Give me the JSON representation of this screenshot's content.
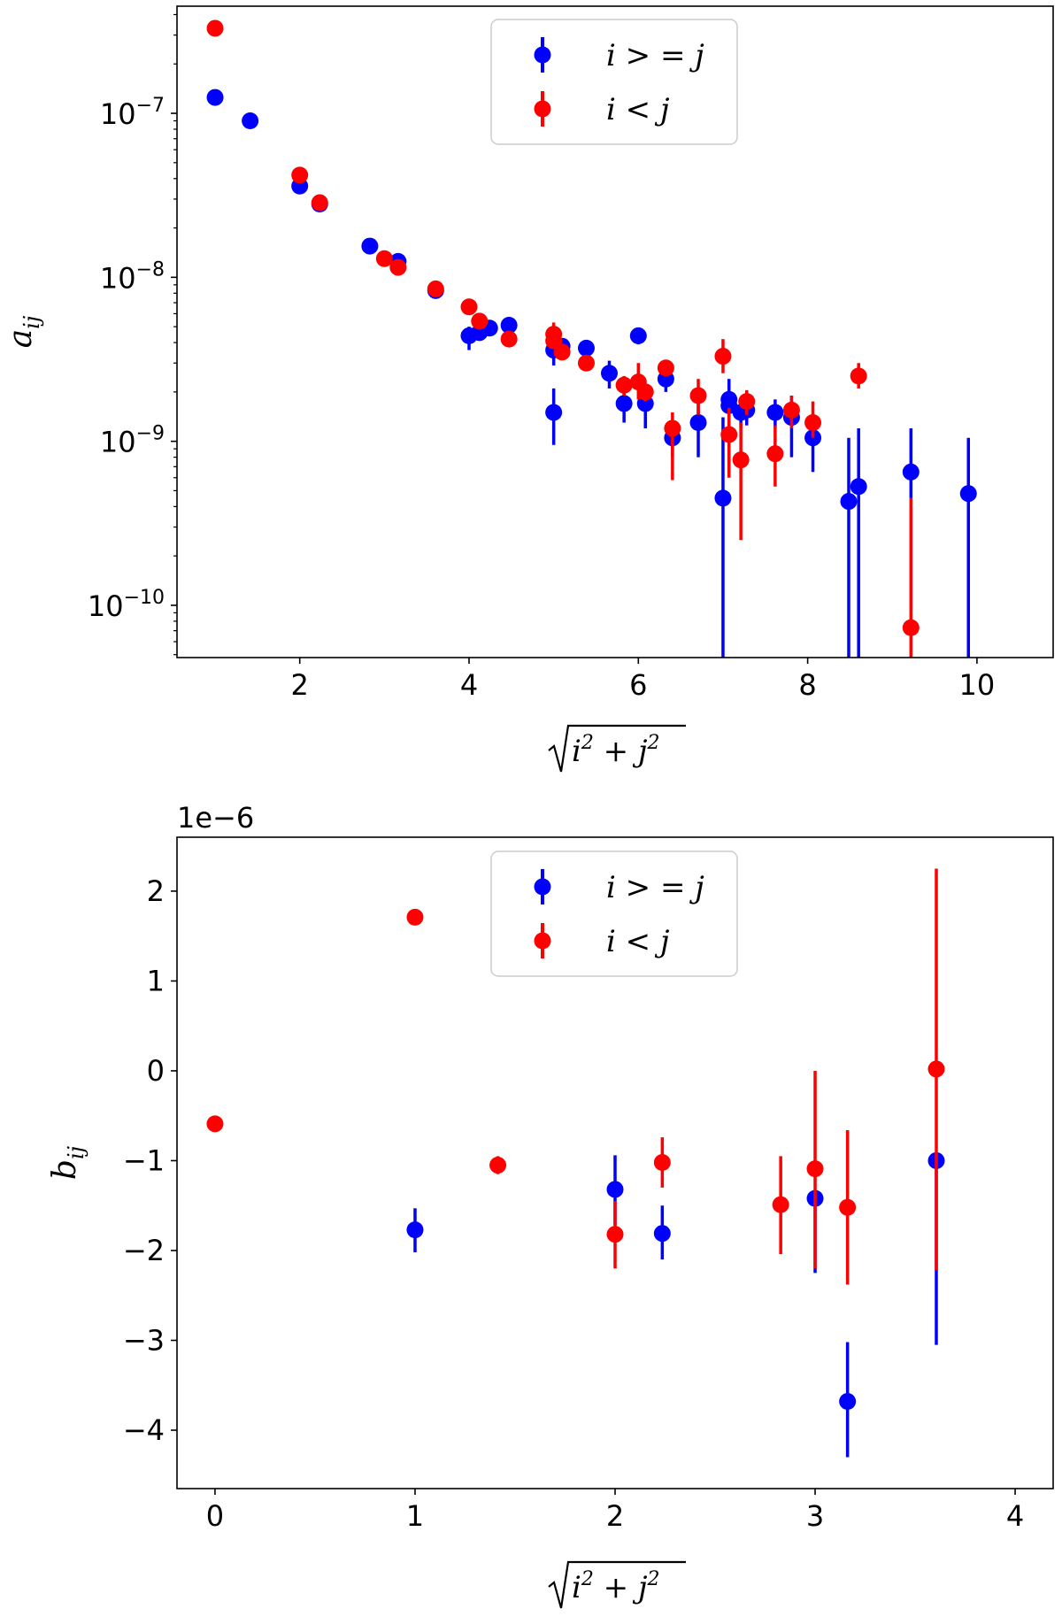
{
  "colors": {
    "blue": "#0000ff",
    "red": "#ff0000"
  },
  "legend": {
    "entries": [
      "i > = j",
      "i < j"
    ]
  },
  "chart_data": [
    {
      "type": "scatter",
      "yscale": "log",
      "xlabel": "sqrt(i^2 + j^2)",
      "ylabel": "a_ij",
      "xlim": [
        0.55,
        10.9
      ],
      "ylim": [
        4.8e-11,
        4.5e-07
      ],
      "xticks": [
        2,
        4,
        6,
        8,
        10
      ],
      "yticks": [
        {
          "value": 1e-07,
          "exp": "-7"
        },
        {
          "value": 1e-08,
          "exp": "-8"
        },
        {
          "value": 1e-09,
          "exp": "-9"
        },
        {
          "value": 1e-10,
          "exp": "-10"
        }
      ],
      "legend_position": "top-center",
      "series": [
        {
          "name": "i > = j",
          "color": "#0000ff",
          "points": [
            {
              "x": 1.0,
              "y": 1.25e-07,
              "lo": 1.2e-07,
              "hi": 1.3e-07
            },
            {
              "x": 1.414,
              "y": 9e-08,
              "lo": 8.7e-08,
              "hi": 9.3e-08
            },
            {
              "x": 2.0,
              "y": 3.6e-08,
              "lo": 3.4e-08,
              "hi": 3.8e-08
            },
            {
              "x": 2.236,
              "y": 2.8e-08,
              "lo": 2.7e-08,
              "hi": 2.9e-08
            },
            {
              "x": 2.828,
              "y": 1.55e-08,
              "lo": 1.5e-08,
              "hi": 1.6e-08
            },
            {
              "x": 3.162,
              "y": 1.25e-08,
              "lo": 1.2e-08,
              "hi": 1.3e-08
            },
            {
              "x": 3.606,
              "y": 8.3e-09,
              "lo": 8e-09,
              "hi": 8.6e-09
            },
            {
              "x": 4.0,
              "y": 4.4e-09,
              "lo": 3.6e-09,
              "hi": 5e-09
            },
            {
              "x": 4.123,
              "y": 4.6e-09,
              "lo": 4.2e-09,
              "hi": 5e-09
            },
            {
              "x": 4.243,
              "y": 4.9e-09,
              "lo": 4.5e-09,
              "hi": 5.3e-09
            },
            {
              "x": 4.472,
              "y": 5.1e-09,
              "lo": 4.8e-09,
              "hi": 5.4e-09
            },
            {
              "x": 5.0,
              "y": 3.6e-09,
              "lo": 2.9e-09,
              "hi": 4.3e-09
            },
            {
              "x": 5.0,
              "y": 1.5e-09,
              "lo": 9.5e-10,
              "hi": 2.1e-09
            },
            {
              "x": 5.099,
              "y": 3.8e-09,
              "lo": 3.5e-09,
              "hi": 4.1e-09
            },
            {
              "x": 5.385,
              "y": 3.7e-09,
              "lo": 3.4e-09,
              "hi": 4e-09
            },
            {
              "x": 5.657,
              "y": 2.6e-09,
              "lo": 2.1e-09,
              "hi": 3.1e-09
            },
            {
              "x": 5.831,
              "y": 1.7e-09,
              "lo": 1.3e-09,
              "hi": 2.1e-09
            },
            {
              "x": 6.0,
              "y": 4.4e-09,
              "lo": 3.9e-09,
              "hi": 4.9e-09
            },
            {
              "x": 6.083,
              "y": 1.7e-09,
              "lo": 1.2e-09,
              "hi": 2.2e-09
            },
            {
              "x": 6.325,
              "y": 2.4e-09,
              "lo": 2e-09,
              "hi": 2.8e-09
            },
            {
              "x": 6.403,
              "y": 1.05e-09,
              "lo": 8e-10,
              "hi": 1.3e-09
            },
            {
              "x": 6.708,
              "y": 1.3e-09,
              "lo": 8e-10,
              "hi": 1.8e-09
            },
            {
              "x": 7.0,
              "y": 4.5e-10,
              "lo": 1e-12,
              "hi": 1.4e-09
            },
            {
              "x": 7.071,
              "y": 1.8e-09,
              "lo": 1.3e-09,
              "hi": 2.4e-09
            },
            {
              "x": 7.071,
              "y": 1.65e-09,
              "lo": 1.3e-09,
              "hi": 2e-09
            },
            {
              "x": 7.211,
              "y": 1.5e-09,
              "lo": 1.2e-09,
              "hi": 1.8e-09
            },
            {
              "x": 7.28,
              "y": 1.55e-09,
              "lo": 1.25e-09,
              "hi": 1.85e-09
            },
            {
              "x": 7.616,
              "y": 1.5e-09,
              "lo": 1.2e-09,
              "hi": 1.8e-09
            },
            {
              "x": 7.81,
              "y": 1.4e-09,
              "lo": 8e-10,
              "hi": 1.9e-09
            },
            {
              "x": 8.062,
              "y": 1.05e-09,
              "lo": 6.5e-10,
              "hi": 1.4e-09
            },
            {
              "x": 8.485,
              "y": 4.3e-10,
              "lo": 1e-12,
              "hi": 1.05e-09
            },
            {
              "x": 8.602,
              "y": 5.3e-10,
              "lo": 1e-12,
              "hi": 1.2e-09
            },
            {
              "x": 9.22,
              "y": 6.5e-10,
              "lo": 4.5e-10,
              "hi": 1.2e-09
            },
            {
              "x": 9.899,
              "y": 4.8e-10,
              "lo": 1e-12,
              "hi": 1.05e-09
            }
          ]
        },
        {
          "name": "i < j",
          "color": "#ff0000",
          "points": [
            {
              "x": 1.0,
              "y": 3.3e-07,
              "lo": 3.2e-07,
              "hi": 3.4e-07
            },
            {
              "x": 2.0,
              "y": 4.2e-08,
              "lo": 4e-08,
              "hi": 4.4e-08
            },
            {
              "x": 2.236,
              "y": 2.85e-08,
              "lo": 2.75e-08,
              "hi": 2.95e-08
            },
            {
              "x": 3.0,
              "y": 1.3e-08,
              "lo": 1.25e-08,
              "hi": 1.35e-08
            },
            {
              "x": 3.162,
              "y": 1.15e-08,
              "lo": 1.1e-08,
              "hi": 1.2e-08
            },
            {
              "x": 3.606,
              "y": 8.5e-09,
              "lo": 8.2e-09,
              "hi": 8.8e-09
            },
            {
              "x": 4.0,
              "y": 6.6e-09,
              "lo": 6.3e-09,
              "hi": 6.9e-09
            },
            {
              "x": 4.123,
              "y": 5.4e-09,
              "lo": 5.1e-09,
              "hi": 5.7e-09
            },
            {
              "x": 4.472,
              "y": 4.2e-09,
              "lo": 4e-09,
              "hi": 4.4e-09
            },
            {
              "x": 5.0,
              "y": 4.5e-09,
              "lo": 3.8e-09,
              "hi": 5.3e-09
            },
            {
              "x": 5.0,
              "y": 4.1e-09,
              "lo": 3.7e-09,
              "hi": 4.5e-09
            },
            {
              "x": 5.099,
              "y": 3.5e-09,
              "lo": 3.2e-09,
              "hi": 3.8e-09
            },
            {
              "x": 5.385,
              "y": 3e-09,
              "lo": 2.8e-09,
              "hi": 3.2e-09
            },
            {
              "x": 5.831,
              "y": 2.2e-09,
              "lo": 1.9e-09,
              "hi": 2.5e-09
            },
            {
              "x": 6.0,
              "y": 2.3e-09,
              "lo": 1.8e-09,
              "hi": 3e-09
            },
            {
              "x": 6.083,
              "y": 2e-09,
              "lo": 1.75e-09,
              "hi": 2.25e-09
            },
            {
              "x": 6.325,
              "y": 2.8e-09,
              "lo": 2.5e-09,
              "hi": 3.1e-09
            },
            {
              "x": 6.403,
              "y": 1.2e-09,
              "lo": 5.8e-10,
              "hi": 1.5e-09
            },
            {
              "x": 6.708,
              "y": 1.9e-09,
              "lo": 1.45e-09,
              "hi": 2.4e-09
            },
            {
              "x": 7.0,
              "y": 3.3e-09,
              "lo": 2.6e-09,
              "hi": 4.2e-09
            },
            {
              "x": 7.071,
              "y": 1.1e-09,
              "lo": 6e-10,
              "hi": 1.6e-09
            },
            {
              "x": 7.211,
              "y": 7.7e-10,
              "lo": 2.5e-10,
              "hi": 1.3e-09
            },
            {
              "x": 7.28,
              "y": 1.75e-09,
              "lo": 1.45e-09,
              "hi": 2.05e-09
            },
            {
              "x": 7.616,
              "y": 8.4e-10,
              "lo": 5.3e-10,
              "hi": 1.25e-09
            },
            {
              "x": 7.81,
              "y": 1.55e-09,
              "lo": 1.2e-09,
              "hi": 1.9e-09
            },
            {
              "x": 8.062,
              "y": 1.3e-09,
              "lo": 1.05e-09,
              "hi": 1.75e-09
            },
            {
              "x": 8.602,
              "y": 2.5e-09,
              "lo": 2.1e-09,
              "hi": 3e-09
            },
            {
              "x": 9.22,
              "y": 7.3e-11,
              "lo": 1e-12,
              "hi": 4.5e-10
            }
          ]
        }
      ]
    },
    {
      "type": "scatter",
      "yscale": "linear",
      "offset_label": "1e−6",
      "xlabel": "sqrt(i^2 + j^2)",
      "ylabel": "b_ij",
      "xlim": [
        -0.19,
        4.19
      ],
      "ylim": [
        -4.65,
        2.6
      ],
      "xticks": [
        0,
        1,
        2,
        3,
        4
      ],
      "yticks": [
        2,
        1,
        0,
        -1,
        -2,
        -3,
        -4
      ],
      "legend_position": "top-center",
      "series": [
        {
          "name": "i > = j",
          "color": "#0000ff",
          "points": [
            {
              "x": 1.0,
              "y": -1.77,
              "lo": -2.02,
              "hi": -1.53
            },
            {
              "x": 2.0,
              "y": -1.32,
              "lo": -1.72,
              "hi": -0.94
            },
            {
              "x": 2.236,
              "y": -1.81,
              "lo": -2.1,
              "hi": -1.5
            },
            {
              "x": 3.0,
              "y": -1.42,
              "lo": -2.25,
              "hi": -1.42
            },
            {
              "x": 3.162,
              "y": -3.68,
              "lo": -4.3,
              "hi": -3.02
            },
            {
              "x": 3.606,
              "y": -1.0,
              "lo": -3.05,
              "hi": -1.0
            }
          ]
        },
        {
          "name": "i < j",
          "color": "#ff0000",
          "points": [
            {
              "x": 0.0,
              "y": -0.59,
              "lo": -0.65,
              "hi": -0.53
            },
            {
              "x": 1.0,
              "y": 1.71,
              "lo": 1.66,
              "hi": 1.76
            },
            {
              "x": 1.414,
              "y": -1.05,
              "lo": -1.15,
              "hi": -0.95
            },
            {
              "x": 2.0,
              "y": -1.82,
              "lo": -2.2,
              "hi": -1.45
            },
            {
              "x": 2.236,
              "y": -1.02,
              "lo": -1.3,
              "hi": -0.74
            },
            {
              "x": 2.828,
              "y": -1.49,
              "lo": -2.04,
              "hi": -0.95
            },
            {
              "x": 3.0,
              "y": -1.09,
              "lo": -2.2,
              "hi": 0.0
            },
            {
              "x": 3.162,
              "y": -1.52,
              "lo": -2.38,
              "hi": -0.66
            },
            {
              "x": 3.606,
              "y": 0.02,
              "lo": -2.22,
              "hi": 2.25
            }
          ]
        }
      ]
    }
  ]
}
